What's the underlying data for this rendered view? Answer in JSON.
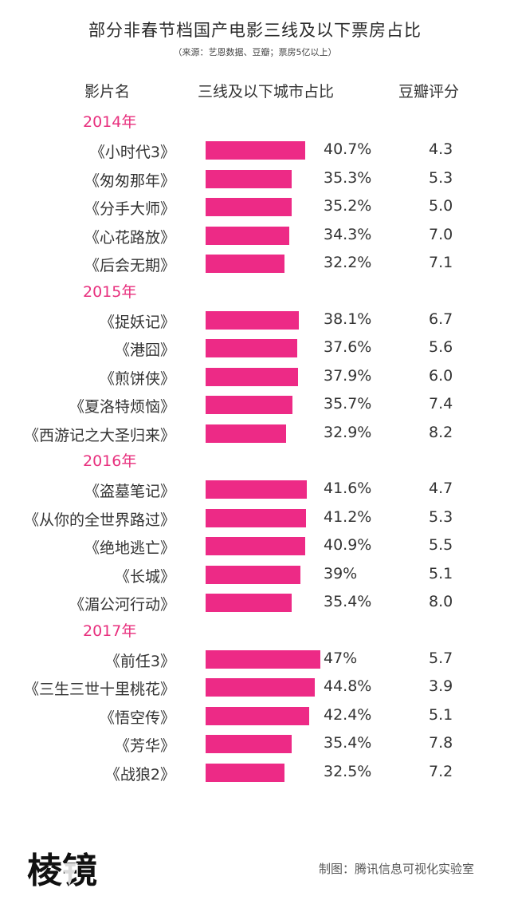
{
  "title": "部分非春节档国产电影三线及以下票房占比",
  "subtitle": "（来源：艺恩数据、豆瓣；票房5亿以上）",
  "headers": {
    "name": "影片名",
    "share": "三线及以下城市占比",
    "score": "豆瓣评分"
  },
  "colors": {
    "bar": "#ed2a86",
    "year": "#e8307e"
  },
  "chart_data": {
    "type": "bar",
    "orientation": "horizontal",
    "title": "部分非春节档国产电影三线及以下票房占比",
    "xlim": [
      0,
      50
    ],
    "groups": [
      {
        "year": "2014年",
        "films": [
          {
            "name": "《小时代3》",
            "value": 40.7,
            "label": "40.7%",
            "score": "4.3"
          },
          {
            "name": "《匆匆那年》",
            "value": 35.3,
            "label": "35.3%",
            "score": "5.3"
          },
          {
            "name": "《分手大师》",
            "value": 35.2,
            "label": "35.2%",
            "score": "5.0"
          },
          {
            "name": "《心花路放》",
            "value": 34.3,
            "label": "34.3%",
            "score": "7.0"
          },
          {
            "name": "《后会无期》",
            "value": 32.2,
            "label": "32.2%",
            "score": "7.1"
          }
        ]
      },
      {
        "year": "2015年",
        "films": [
          {
            "name": "《捉妖记》",
            "value": 38.1,
            "label": "38.1%",
            "score": "6.7"
          },
          {
            "name": "《港囧》",
            "value": 37.6,
            "label": "37.6%",
            "score": "5.6"
          },
          {
            "name": "《煎饼侠》",
            "value": 37.9,
            "label": "37.9%",
            "score": "6.0"
          },
          {
            "name": "《夏洛特烦恼》",
            "value": 35.7,
            "label": "35.7%",
            "score": "7.4"
          },
          {
            "name": "《西游记之大圣归来》",
            "value": 32.9,
            "label": "32.9%",
            "score": "8.2"
          }
        ]
      },
      {
        "year": "2016年",
        "films": [
          {
            "name": "《盗墓笔记》",
            "value": 41.6,
            "label": "41.6%",
            "score": "4.7"
          },
          {
            "name": "《从你的全世界路过》",
            "value": 41.2,
            "label": "41.2%",
            "score": "5.3"
          },
          {
            "name": "《绝地逃亡》",
            "value": 40.9,
            "label": "40.9%",
            "score": "5.5"
          },
          {
            "name": "《长城》",
            "value": 39,
            "label": "39%",
            "score": "5.1"
          },
          {
            "name": "《湄公河行动》",
            "value": 35.4,
            "label": "35.4%",
            "score": "8.0"
          }
        ]
      },
      {
        "year": "2017年",
        "films": [
          {
            "name": "《前任3》",
            "value": 47,
            "label": "47%",
            "score": "5.7"
          },
          {
            "name": "《三生三世十里桃花》",
            "value": 44.8,
            "label": "44.8%",
            "score": "3.9"
          },
          {
            "name": "《悟空传》",
            "value": 42.4,
            "label": "42.4%",
            "score": "5.1"
          },
          {
            "name": "《芳华》",
            "value": 35.4,
            "label": "35.4%",
            "score": "7.8"
          },
          {
            "name": "《战狼2》",
            "value": 32.5,
            "label": "32.5%",
            "score": "7.2"
          }
        ]
      }
    ]
  },
  "footer": {
    "logo_text": "棱镜",
    "credit": "制图：腾讯信息可视化实验室"
  }
}
